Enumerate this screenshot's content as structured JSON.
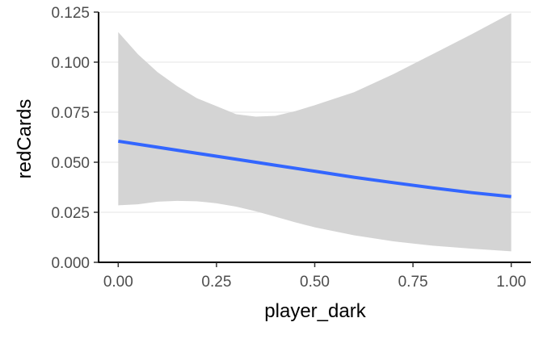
{
  "chart_data": {
    "type": "line",
    "title": "",
    "xlabel": "player_dark",
    "ylabel": "redCards",
    "xlim": [
      -0.05,
      1.05
    ],
    "ylim": [
      0.0,
      0.125
    ],
    "x_ticks": [
      0.0,
      0.25,
      0.5,
      0.75,
      1.0
    ],
    "x_tick_labels": [
      "0.00",
      "0.25",
      "0.50",
      "0.75",
      "1.00"
    ],
    "y_ticks": [
      0.0,
      0.025,
      0.05,
      0.075,
      0.1,
      0.125
    ],
    "y_tick_labels": [
      "0.000",
      "0.025",
      "0.050",
      "0.075",
      "0.100",
      "0.125"
    ],
    "grid": "horizontal major",
    "legend": "none",
    "series": [
      {
        "fit": {
          "x": [
            0.0,
            0.1,
            0.2,
            0.3,
            0.4,
            0.5,
            0.6,
            0.7,
            0.8,
            0.9,
            1.0
          ],
          "y": [
            0.0605,
            0.0575,
            0.0545,
            0.0515,
            0.0485,
            0.0455,
            0.0425,
            0.0398,
            0.0372,
            0.0348,
            0.0328
          ]
        },
        "band_upper": {
          "x": [
            0.0,
            0.05,
            0.1,
            0.15,
            0.2,
            0.25,
            0.3,
            0.35,
            0.4,
            0.45,
            0.5,
            0.6,
            0.7,
            0.8,
            0.9,
            1.0
          ],
          "y": [
            0.115,
            0.104,
            0.095,
            0.088,
            0.082,
            0.078,
            0.074,
            0.0728,
            0.0732,
            0.0755,
            0.0785,
            0.085,
            0.094,
            0.104,
            0.114,
            0.1245
          ]
        },
        "band_lower": {
          "x": [
            0.0,
            0.05,
            0.1,
            0.15,
            0.2,
            0.25,
            0.3,
            0.35,
            0.4,
            0.45,
            0.5,
            0.6,
            0.7,
            0.8,
            0.9,
            1.0
          ],
          "y": [
            0.0285,
            0.029,
            0.0303,
            0.0307,
            0.0305,
            0.0295,
            0.0278,
            0.0255,
            0.0228,
            0.02,
            0.0175,
            0.0135,
            0.0105,
            0.0083,
            0.0068,
            0.0055
          ]
        },
        "line_color": "#3366ff",
        "band_color": "#d4d4d4"
      }
    ]
  }
}
